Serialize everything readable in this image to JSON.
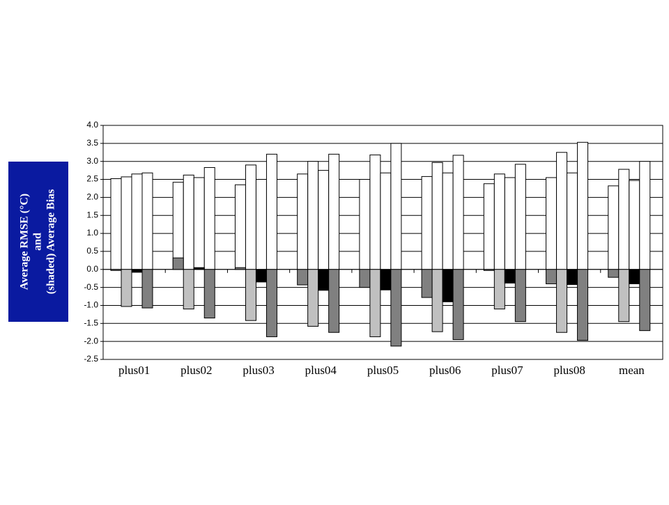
{
  "chart_data": {
    "type": "bar",
    "y_label_lines": [
      "Average RMSE (°C)",
      "and",
      "(shaded) Average Bias"
    ],
    "categories": [
      "plus01",
      "plus02",
      "plus03",
      "plus04",
      "plus05",
      "plus06",
      "plus07",
      "plus08",
      "mean"
    ],
    "series": [
      {
        "color": "#ffffff",
        "values": [
          2.52,
          2.42,
          2.35,
          2.65,
          2.5,
          2.58,
          2.38,
          2.55,
          2.32
        ]
      },
      {
        "color": "#ffffff",
        "values": [
          2.57,
          2.62,
          2.9,
          3.0,
          3.18,
          2.97,
          2.65,
          3.25,
          2.78
        ]
      },
      {
        "color": "#ffffff",
        "values": [
          2.65,
          2.55,
          2.5,
          2.75,
          2.68,
          2.68,
          2.55,
          2.68,
          2.47
        ]
      },
      {
        "color": "#ffffff",
        "values": [
          2.68,
          2.83,
          3.2,
          3.2,
          3.5,
          3.17,
          2.92,
          3.53,
          3.0
        ]
      },
      {
        "color": "#808080",
        "values": [
          -0.03,
          0.32,
          0.05,
          -0.43,
          -0.5,
          -0.78,
          -0.03,
          -0.4,
          -0.22
        ]
      },
      {
        "color": "#c0c0c0",
        "values": [
          -1.03,
          -1.1,
          -1.42,
          -1.58,
          -1.87,
          -1.73,
          -1.1,
          -1.75,
          -1.45
        ]
      },
      {
        "color": "#000000",
        "values": [
          -0.08,
          0.05,
          -0.35,
          -0.58,
          -0.57,
          -0.9,
          -0.38,
          -0.42,
          -0.4
        ]
      },
      {
        "color": "#808080",
        "values": [
          -1.07,
          -1.35,
          -1.87,
          -1.75,
          -2.13,
          -1.95,
          -1.45,
          -1.97,
          -1.7
        ]
      }
    ],
    "ylim": [
      -2.5,
      4.0
    ],
    "yticks": [
      {
        "value": -2.5,
        "label": "-2.5"
      },
      {
        "value": -2.0,
        "label": "-2.0"
      },
      {
        "value": -1.5,
        "label": "-1.5"
      },
      {
        "value": -1.0,
        "label": "-1.0"
      },
      {
        "value": -0.5,
        "label": "-0.5"
      },
      {
        "value": 0,
        "label": "0.0"
      },
      {
        "value": 0.5,
        "label": "0.5"
      },
      {
        "value": 1.0,
        "label": "1.0"
      },
      {
        "value": 1.5,
        "label": "1.5"
      },
      {
        "value": 2.0,
        "label": "2.0"
      },
      {
        "value": 2.5,
        "label": "2.5"
      },
      {
        "value": 3.0,
        "label": "3.0"
      },
      {
        "value": 3.5,
        "label": "3.5"
      },
      {
        "value": 4.0,
        "label": "4.0"
      }
    ],
    "grid": true,
    "label_box_color": "#0a1aa0"
  }
}
